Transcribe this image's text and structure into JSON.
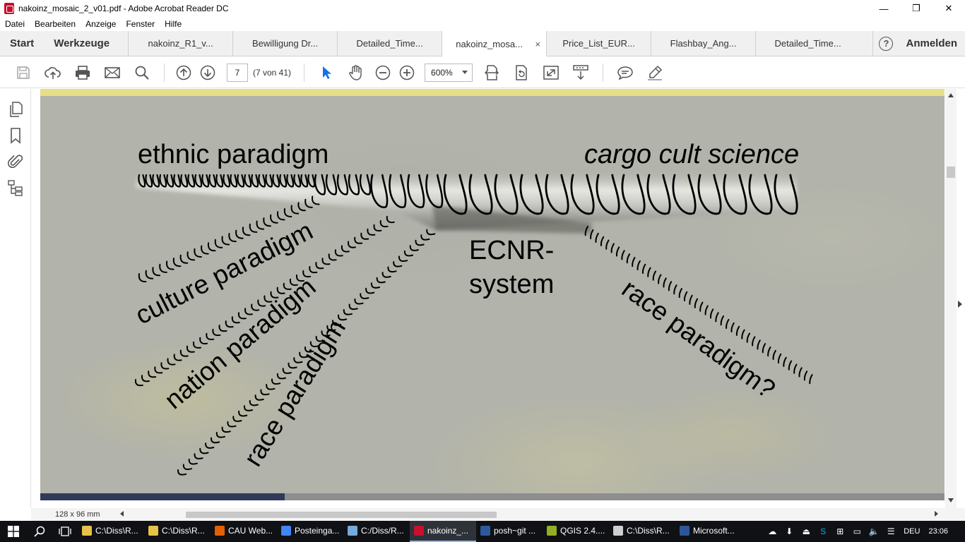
{
  "window": {
    "title": "nakoinz_mosaic_2_v01.pdf - Adobe Acrobat Reader DC",
    "controls": {
      "minimize": "—",
      "maximize": "❐",
      "close": "✕"
    }
  },
  "menu": [
    "Datei",
    "Bearbeiten",
    "Anzeige",
    "Fenster",
    "Hilfe"
  ],
  "tabs": {
    "start": "Start",
    "tools": "Werkzeuge",
    "documents": [
      {
        "label": "nakoinz_R1_v..."
      },
      {
        "label": "Bewilligung Dr..."
      },
      {
        "label": "Detailed_Time..."
      },
      {
        "label": "nakoinz_mosa...",
        "active": true
      },
      {
        "label": "Price_List_EUR..."
      },
      {
        "label": "Flashbay_Ang..."
      },
      {
        "label": "Detailed_Time..."
      }
    ],
    "close_symbol": "×",
    "help": "?",
    "signin": "Anmelden"
  },
  "toolbar": {
    "page_number": "7",
    "page_of": "(7 von 41)",
    "zoom": "600%"
  },
  "slide": {
    "labels": {
      "ethnic": "ethnic paradigm",
      "cargo": "cargo cult science",
      "culture": "culture paradigm",
      "nation": "nation paradigm",
      "race_left": "race paradigm",
      "ecnr_line1": "ECNR-",
      "ecnr_line2": "system",
      "race_right": "race paradigm?"
    },
    "progress_fraction": 0.27,
    "colors": {
      "top_band": "#e6df88",
      "progress": "#2f3a5a",
      "background": "#b2b3aa"
    }
  },
  "status": {
    "page_size": "128 x 96 mm"
  },
  "taskbar": {
    "apps": [
      {
        "label": "C:\\Diss\\R...",
        "icon": "folder-icon",
        "color": "#e8c14a"
      },
      {
        "label": "C:\\Diss\\R...",
        "icon": "folder-icon",
        "color": "#e8c14a"
      },
      {
        "label": "CAU Web...",
        "icon": "firefox-icon",
        "color": "#e66000"
      },
      {
        "label": "Posteinga...",
        "icon": "chrome-icon",
        "color": "#4285f4"
      },
      {
        "label": "C:/Diss/R...",
        "icon": "rstudio-icon",
        "color": "#75aadb"
      },
      {
        "label": "nakoinz_...",
        "icon": "acrobat-icon",
        "color": "#c8102e",
        "active": true
      },
      {
        "label": "posh~git ...",
        "icon": "powershell-icon",
        "color": "#2c5aa0"
      },
      {
        "label": "QGIS 2.4....",
        "icon": "qgis-icon",
        "color": "#93b023"
      },
      {
        "label": "C:\\Diss\\R...",
        "icon": "notepad-icon",
        "color": "#cfcfcf"
      },
      {
        "label": "Microsoft...",
        "icon": "word-icon",
        "color": "#2b579a"
      }
    ],
    "language": "DEU",
    "time": "23:06"
  }
}
